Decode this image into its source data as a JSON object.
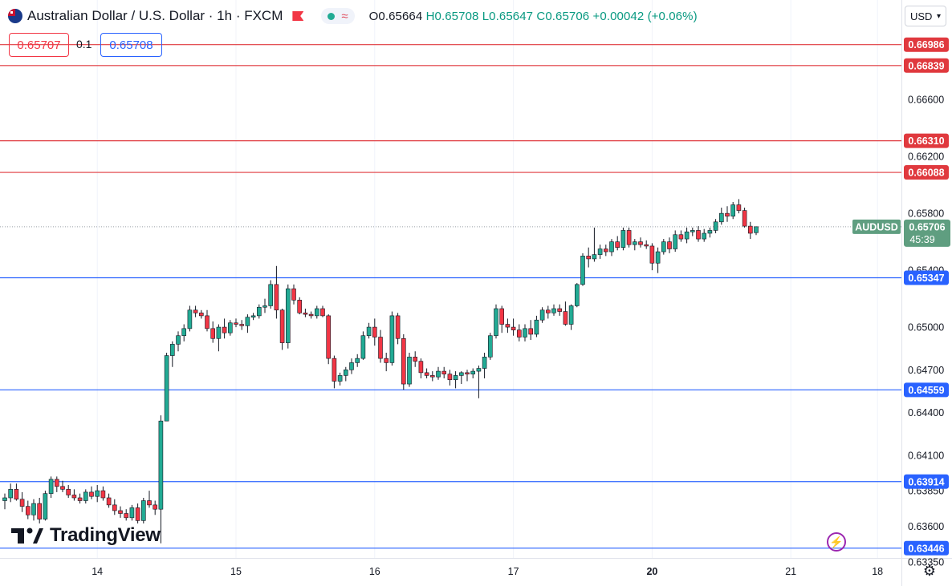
{
  "header": {
    "symbol_title": "Australian Dollar / U.S. Dollar · 1h · FXCM",
    "ohlc": {
      "open": "O0.65664",
      "high": "H0.65708",
      "low": "L0.65647",
      "close": "C0.65706",
      "change": "+0.00042 (+0.06%)"
    }
  },
  "trade": {
    "sell_price": "0.65707",
    "spread": "0.1",
    "buy_price": "0.65708"
  },
  "currency_selector": "USD",
  "branding": {
    "logo_text": "TradingView"
  },
  "colors": {
    "up": "#22ab94",
    "down": "#f23645",
    "resistance": "#e0393e",
    "support": "#2962ff",
    "price_tag": "#5f9e80"
  },
  "icons": {
    "flag": "aud-usd-flag-icon",
    "alert": "flag-icon",
    "replay": "lightning-icon",
    "settings": "gear-icon"
  },
  "chart_data": {
    "type": "candlestick",
    "symbol": "AUDUSD",
    "timeframe": "1h",
    "ylim": [
      0.6318,
      0.673
    ],
    "y_ticks": [
      "0.66600",
      "0.66200",
      "0.65800",
      "0.65400",
      "0.65000",
      "0.64700",
      "0.64400",
      "0.64100",
      "0.63850",
      "0.63600",
      "0.63350"
    ],
    "x_ticks": [
      {
        "label": "14",
        "bar": 16,
        "bold": false
      },
      {
        "label": "15",
        "bar": 40,
        "bold": false
      },
      {
        "label": "16",
        "bar": 64,
        "bold": false
      },
      {
        "label": "17",
        "bar": 88,
        "bold": false
      },
      {
        "label": "20",
        "bar": 112,
        "bold": true
      },
      {
        "label": "21",
        "bar": 136,
        "bold": false
      },
      {
        "label": "18",
        "bar": 151,
        "bold": false
      }
    ],
    "resistance_levels": [
      "0.66986",
      "0.66839",
      "0.66310",
      "0.66088"
    ],
    "support_levels": [
      "0.65347",
      "0.64559",
      "0.63914",
      "0.63446"
    ],
    "last_price": {
      "label": "AUDUSD",
      "value": "0.65706",
      "countdown": "45:39"
    },
    "candles": [
      [
        0.6378,
        0.6383,
        0.6372,
        0.638
      ],
      [
        0.638,
        0.639,
        0.6377,
        0.6386
      ],
      [
        0.6386,
        0.639,
        0.6378,
        0.6379
      ],
      [
        0.6379,
        0.6384,
        0.637,
        0.6374
      ],
      [
        0.6374,
        0.6378,
        0.6365,
        0.6368
      ],
      [
        0.6368,
        0.6379,
        0.6364,
        0.6376
      ],
      [
        0.6376,
        0.638,
        0.6362,
        0.6365
      ],
      [
        0.6365,
        0.6385,
        0.6364,
        0.6383
      ],
      [
        0.6383,
        0.6395,
        0.638,
        0.6393
      ],
      [
        0.6393,
        0.6395,
        0.6384,
        0.6388
      ],
      [
        0.6388,
        0.6392,
        0.6384,
        0.6386
      ],
      [
        0.6386,
        0.6389,
        0.638,
        0.6382
      ],
      [
        0.6382,
        0.6386,
        0.6378,
        0.638
      ],
      [
        0.638,
        0.6383,
        0.6376,
        0.6378
      ],
      [
        0.6378,
        0.6386,
        0.6376,
        0.6384
      ],
      [
        0.6384,
        0.6388,
        0.6379,
        0.6381
      ],
      [
        0.6381,
        0.6389,
        0.6377,
        0.6385
      ],
      [
        0.6385,
        0.6388,
        0.6378,
        0.638
      ],
      [
        0.638,
        0.6383,
        0.6373,
        0.6375
      ],
      [
        0.6375,
        0.6379,
        0.6368,
        0.6371
      ],
      [
        0.6371,
        0.6374,
        0.6366,
        0.6369
      ],
      [
        0.6369,
        0.6372,
        0.6364,
        0.6366
      ],
      [
        0.6366,
        0.6375,
        0.6364,
        0.6373
      ],
      [
        0.6373,
        0.6376,
        0.6362,
        0.6364
      ],
      [
        0.6364,
        0.638,
        0.6362,
        0.6378
      ],
      [
        0.6378,
        0.6385,
        0.6373,
        0.6375
      ],
      [
        0.6375,
        0.6378,
        0.6368,
        0.6372
      ],
      [
        0.6372,
        0.6438,
        0.6348,
        0.6434
      ],
      [
        0.6434,
        0.6482,
        0.6434,
        0.648
      ],
      [
        0.648,
        0.649,
        0.6472,
        0.6488
      ],
      [
        0.6488,
        0.6497,
        0.6483,
        0.6494
      ],
      [
        0.6494,
        0.6502,
        0.649,
        0.6499
      ],
      [
        0.6499,
        0.6515,
        0.6497,
        0.6512
      ],
      [
        0.6512,
        0.6515,
        0.6507,
        0.651
      ],
      [
        0.651,
        0.6512,
        0.6506,
        0.6508
      ],
      [
        0.6508,
        0.6512,
        0.6497,
        0.6499
      ],
      [
        0.6499,
        0.6504,
        0.6489,
        0.6492
      ],
      [
        0.6492,
        0.6502,
        0.6483,
        0.65
      ],
      [
        0.65,
        0.6506,
        0.6492,
        0.6496
      ],
      [
        0.6496,
        0.6505,
        0.6494,
        0.6503
      ],
      [
        0.6503,
        0.6506,
        0.65,
        0.6502
      ],
      [
        0.6502,
        0.6505,
        0.6498,
        0.6501
      ],
      [
        0.6501,
        0.6509,
        0.6496,
        0.6507
      ],
      [
        0.6507,
        0.651,
        0.6505,
        0.6508
      ],
      [
        0.6508,
        0.6516,
        0.6506,
        0.6514
      ],
      [
        0.6514,
        0.652,
        0.651,
        0.6515
      ],
      [
        0.6515,
        0.6533,
        0.6513,
        0.653
      ],
      [
        0.653,
        0.6543,
        0.6506,
        0.6512
      ],
      [
        0.6512,
        0.6513,
        0.6484,
        0.6489
      ],
      [
        0.6489,
        0.653,
        0.6485,
        0.6527
      ],
      [
        0.6527,
        0.653,
        0.6516,
        0.6519
      ],
      [
        0.6519,
        0.6521,
        0.6509,
        0.651
      ],
      [
        0.651,
        0.6513,
        0.6507,
        0.6509
      ],
      [
        0.6509,
        0.6511,
        0.6506,
        0.6508
      ],
      [
        0.6508,
        0.6515,
        0.6506,
        0.6513
      ],
      [
        0.6513,
        0.6515,
        0.6507,
        0.6508
      ],
      [
        0.6508,
        0.6509,
        0.6474,
        0.6478
      ],
      [
        0.6478,
        0.648,
        0.6457,
        0.6462
      ],
      [
        0.6462,
        0.6468,
        0.6459,
        0.6466
      ],
      [
        0.6466,
        0.6472,
        0.6462,
        0.647
      ],
      [
        0.647,
        0.6478,
        0.6467,
        0.6475
      ],
      [
        0.6475,
        0.6481,
        0.6472,
        0.6478
      ],
      [
        0.6478,
        0.6497,
        0.6477,
        0.6494
      ],
      [
        0.6494,
        0.6503,
        0.6492,
        0.65
      ],
      [
        0.65,
        0.6506,
        0.6487,
        0.6493
      ],
      [
        0.6493,
        0.6498,
        0.6475,
        0.6478
      ],
      [
        0.6478,
        0.6482,
        0.6469,
        0.6475
      ],
      [
        0.6475,
        0.6511,
        0.6473,
        0.6508
      ],
      [
        0.6508,
        0.651,
        0.6488,
        0.6492
      ],
      [
        0.6492,
        0.6495,
        0.6456,
        0.646
      ],
      [
        0.646,
        0.6482,
        0.6458,
        0.6479
      ],
      [
        0.6479,
        0.6483,
        0.6472,
        0.6476
      ],
      [
        0.6476,
        0.6478,
        0.6464,
        0.6468
      ],
      [
        0.6468,
        0.6471,
        0.6464,
        0.6466
      ],
      [
        0.6466,
        0.6469,
        0.6462,
        0.6465
      ],
      [
        0.6465,
        0.6472,
        0.6463,
        0.6469
      ],
      [
        0.6469,
        0.6472,
        0.6464,
        0.6467
      ],
      [
        0.6467,
        0.647,
        0.6459,
        0.6463
      ],
      [
        0.6463,
        0.6469,
        0.6457,
        0.6466
      ],
      [
        0.6466,
        0.6469,
        0.646,
        0.6468
      ],
      [
        0.6468,
        0.647,
        0.6462,
        0.6467
      ],
      [
        0.6467,
        0.6471,
        0.6464,
        0.6469
      ],
      [
        0.6469,
        0.6473,
        0.645,
        0.6471
      ],
      [
        0.6471,
        0.6482,
        0.6464,
        0.6479
      ],
      [
        0.6479,
        0.6496,
        0.6477,
        0.6494
      ],
      [
        0.6494,
        0.6516,
        0.6492,
        0.6513
      ],
      [
        0.6513,
        0.6515,
        0.6496,
        0.6502
      ],
      [
        0.6502,
        0.6506,
        0.6496,
        0.65
      ],
      [
        0.65,
        0.6506,
        0.6494,
        0.6498
      ],
      [
        0.6498,
        0.6502,
        0.649,
        0.6493
      ],
      [
        0.6493,
        0.6502,
        0.649,
        0.6499
      ],
      [
        0.6499,
        0.6505,
        0.6491,
        0.6495
      ],
      [
        0.6495,
        0.6508,
        0.6493,
        0.6505
      ],
      [
        0.6505,
        0.6514,
        0.6503,
        0.6512
      ],
      [
        0.6512,
        0.6515,
        0.6506,
        0.651
      ],
      [
        0.651,
        0.6516,
        0.6508,
        0.6513
      ],
      [
        0.6513,
        0.6516,
        0.6508,
        0.6511
      ],
      [
        0.6511,
        0.6518,
        0.6501,
        0.6502
      ],
      [
        0.6502,
        0.6516,
        0.6498,
        0.6515
      ],
      [
        0.6515,
        0.6531,
        0.6514,
        0.653
      ],
      [
        0.653,
        0.6552,
        0.6529,
        0.655
      ],
      [
        0.655,
        0.6556,
        0.6542,
        0.6548
      ],
      [
        0.6548,
        0.657,
        0.6546,
        0.6551
      ],
      [
        0.6551,
        0.6558,
        0.6548,
        0.6555
      ],
      [
        0.6555,
        0.6558,
        0.655,
        0.6553
      ],
      [
        0.6553,
        0.6562,
        0.655,
        0.656
      ],
      [
        0.656,
        0.6564,
        0.6554,
        0.6556
      ],
      [
        0.6556,
        0.657,
        0.6554,
        0.6568
      ],
      [
        0.6568,
        0.657,
        0.6556,
        0.6558
      ],
      [
        0.6558,
        0.6562,
        0.6554,
        0.656
      ],
      [
        0.656,
        0.6563,
        0.6556,
        0.6558
      ],
      [
        0.6558,
        0.6561,
        0.6555,
        0.6557
      ],
      [
        0.6557,
        0.6559,
        0.654,
        0.6545
      ],
      [
        0.6545,
        0.6556,
        0.6538,
        0.6553
      ],
      [
        0.6553,
        0.6562,
        0.6551,
        0.656
      ],
      [
        0.656,
        0.6563,
        0.6552,
        0.6555
      ],
      [
        0.6555,
        0.6568,
        0.6553,
        0.6565
      ],
      [
        0.6565,
        0.6568,
        0.656,
        0.6562
      ],
      [
        0.6562,
        0.657,
        0.6559,
        0.6567
      ],
      [
        0.6567,
        0.657,
        0.6564,
        0.6568
      ],
      [
        0.6568,
        0.6571,
        0.656,
        0.6562
      ],
      [
        0.6562,
        0.6569,
        0.656,
        0.6566
      ],
      [
        0.6566,
        0.657,
        0.6563,
        0.6568
      ],
      [
        0.6568,
        0.6576,
        0.6566,
        0.6574
      ],
      [
        0.6574,
        0.6584,
        0.6572,
        0.658
      ],
      [
        0.658,
        0.6585,
        0.6574,
        0.6578
      ],
      [
        0.6578,
        0.6588,
        0.6576,
        0.6586
      ],
      [
        0.6586,
        0.659,
        0.658,
        0.6582
      ],
      [
        0.6582,
        0.6584,
        0.657,
        0.6571
      ],
      [
        0.6571,
        0.6574,
        0.6562,
        0.6566
      ],
      [
        0.65664,
        0.65708,
        0.65647,
        0.65706
      ]
    ]
  }
}
